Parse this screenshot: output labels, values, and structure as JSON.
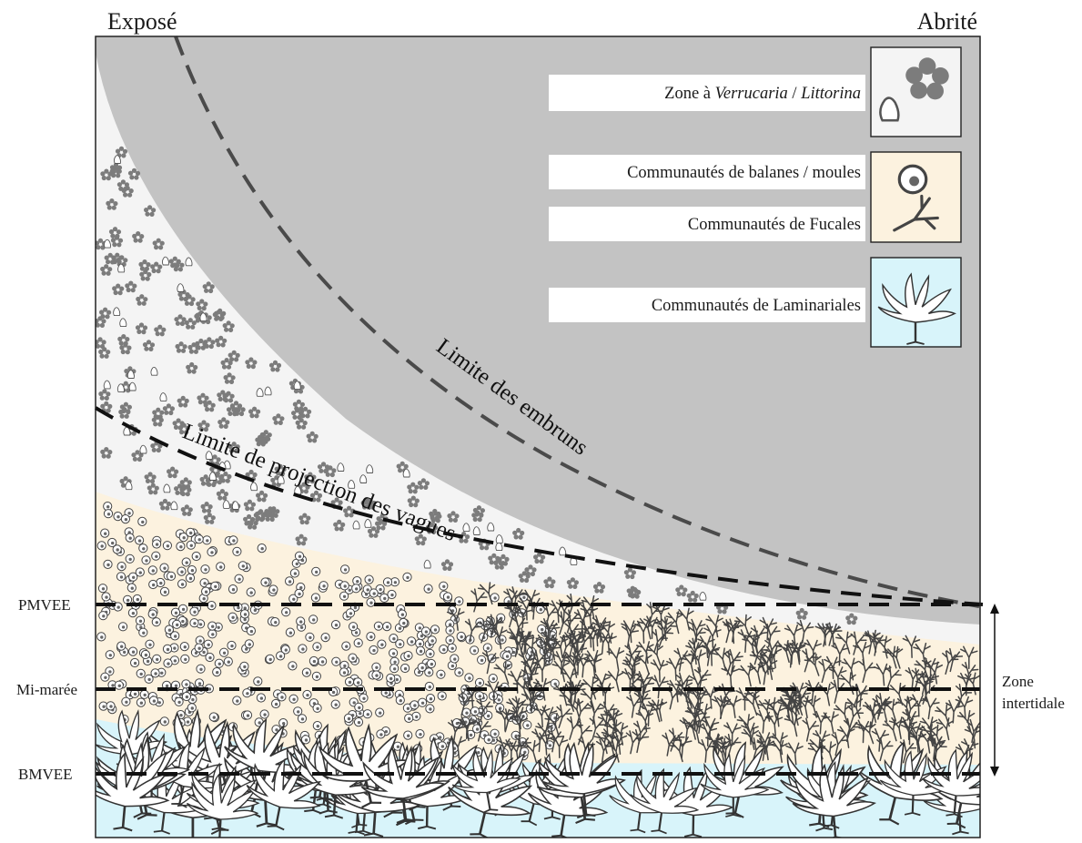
{
  "headers": {
    "left": "Exposé",
    "right": "Abrité"
  },
  "levels": {
    "pmvee": "PMVEE",
    "mi_maree": "Mi-marée",
    "bmvee": "BMVEE"
  },
  "intertidal": {
    "line1": "Zone",
    "line2": "intertidale"
  },
  "curves": {
    "embruns": "Limite des embruns",
    "projection": "Limite de projection des vagues"
  },
  "legend": {
    "verrucaria": {
      "prefix": "Zone à ",
      "italic1": "Verrucaria",
      "sep": " / ",
      "italic2": "Littorina"
    },
    "balanes": "Communautés  de balanes / moules",
    "fucales": "Communautés  de Fucales",
    "laminariales": "Communautés  de Laminariales"
  },
  "colors": {
    "spray_zone": "#c3c3c3",
    "verrucaria_zone": "#f4f4f4",
    "balanes_fucales_zone": "#fcf2df",
    "laminariales_zone": "#d8f4fa",
    "littorina_dots": "#7c7c7c",
    "frame": "#222222"
  },
  "icons": {
    "verrucaria": "periwinkle-shell-and-dot-cluster",
    "balanes": "barnacle-icon",
    "fucales": "fucus-frond-icon",
    "laminariales": "kelp-frond-icon"
  }
}
